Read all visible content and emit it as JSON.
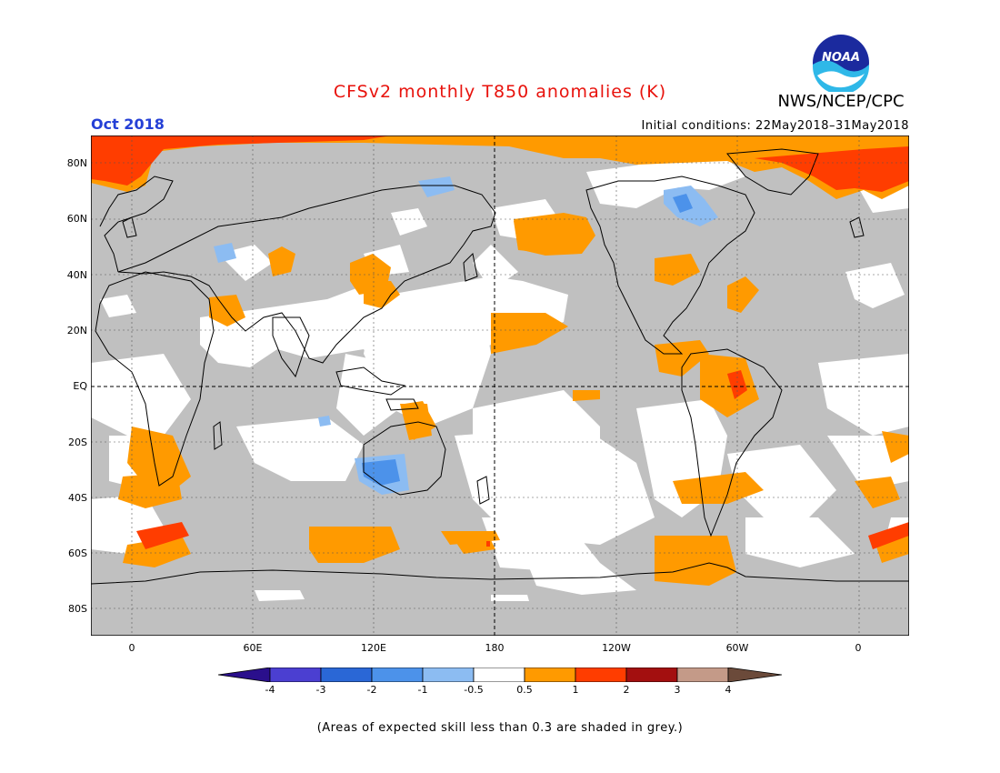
{
  "title": "CFSv2 monthly T850 anomalies (K)",
  "agency": "NWS/NCEP/CPC",
  "logo_text": "NOAA",
  "target_month": "Oct 2018",
  "initial_conditions": "Initial conditions: 22May2018–31May2018",
  "latitude_labels": [
    "80N",
    "60N",
    "40N",
    "20N",
    "EQ",
    "20S",
    "40S",
    "60S",
    "80S"
  ],
  "longitude_labels": [
    "0",
    "60E",
    "120E",
    "180",
    "120W",
    "60W",
    "0"
  ],
  "colorbar": {
    "labels": [
      "-4",
      "-3",
      "-2",
      "-1",
      "-0.5",
      "0.5",
      "1",
      "2",
      "3",
      "4"
    ],
    "colors": [
      "#2a0f8c",
      "#4b3fd1",
      "#2a67d6",
      "#4c92ea",
      "#8cbcf2",
      "#ffffff",
      "#ff9a00",
      "#ff3d00",
      "#a30f0f",
      "#c49a88",
      "#6b4a3a"
    ]
  },
  "footnote": "(Areas of expected skill less than 0.3 are shaded in grey.)",
  "colors": {
    "skill_grey": "#c0c0c0",
    "positive_05_1": "#ff9a00",
    "positive_1_2": "#ff3d00",
    "negative_05_1": "#8cbcf2",
    "negative_1_2": "#4c92ea",
    "title_red": "#e8120c",
    "month_blue": "#2540d6"
  }
}
